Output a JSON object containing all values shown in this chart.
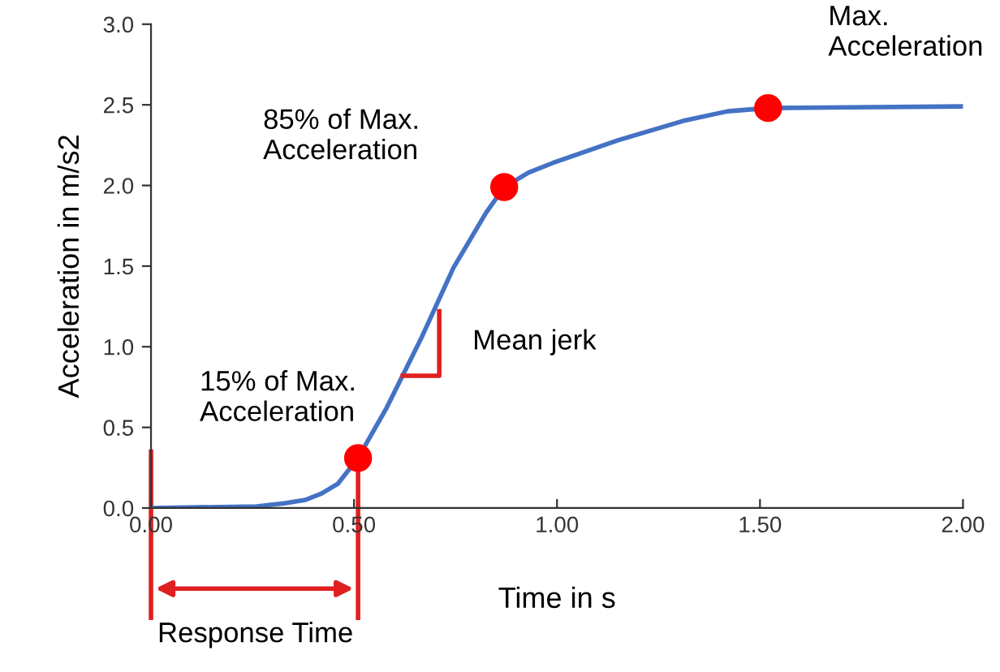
{
  "chart_data": {
    "type": "line",
    "xlabel": "Time in s",
    "ylabel": "Acceleration in m/s2",
    "xlim": [
      0,
      2
    ],
    "ylim": [
      0,
      3
    ],
    "xticks": [
      {
        "value": 0,
        "label": "0.00"
      },
      {
        "value": 0.5,
        "label": "0.50"
      },
      {
        "value": 1,
        "label": "1.00"
      },
      {
        "value": 1.5,
        "label": "1.50"
      },
      {
        "value": 2,
        "label": "2.00"
      }
    ],
    "yticks": [
      {
        "value": 0,
        "label": "0.0"
      },
      {
        "value": 0.5,
        "label": "0.5"
      },
      {
        "value": 1,
        "label": "1.0"
      },
      {
        "value": 1.5,
        "label": "1.5"
      },
      {
        "value": 2,
        "label": "2.0"
      },
      {
        "value": 2.5,
        "label": "2.5"
      },
      {
        "value": 3,
        "label": "3.0"
      }
    ],
    "grid": false,
    "legend": false,
    "series": [
      {
        "color": "#4472c4",
        "marker": "none",
        "line_style": "solid",
        "x": [
          0,
          0.26,
          0.33,
          0.38,
          0.42,
          0.46,
          0.51,
          0.58,
          0.665,
          0.745,
          0.825,
          0.87,
          0.93,
          0.99,
          1.15,
          1.31,
          1.42,
          1.52,
          2.0
        ],
        "values": [
          0,
          0.01,
          0.03,
          0.05,
          0.09,
          0.15,
          0.31,
          0.62,
          1.05,
          1.49,
          1.83,
          1.99,
          2.08,
          2.14,
          2.28,
          2.4,
          2.46,
          2.48,
          2.49
        ]
      },
      {
        "type": "scatter",
        "color": "#ff0000",
        "marker": "circle",
        "x": [
          0.51,
          0.87,
          1.52
        ],
        "values": [
          0.31,
          1.99,
          2.48
        ]
      }
    ],
    "annotations": [
      "15% of Max.\nAcceleration",
      "85% of Max.\nAcceleration",
      "Max.\nAcceleration",
      "Mean jerk",
      "Response Time"
    ],
    "ref_lines": [
      {
        "axis": "x",
        "value": 0,
        "color": "#e02020"
      },
      {
        "axis": "x",
        "value": 0.51,
        "color": "#e02020"
      }
    ]
  }
}
